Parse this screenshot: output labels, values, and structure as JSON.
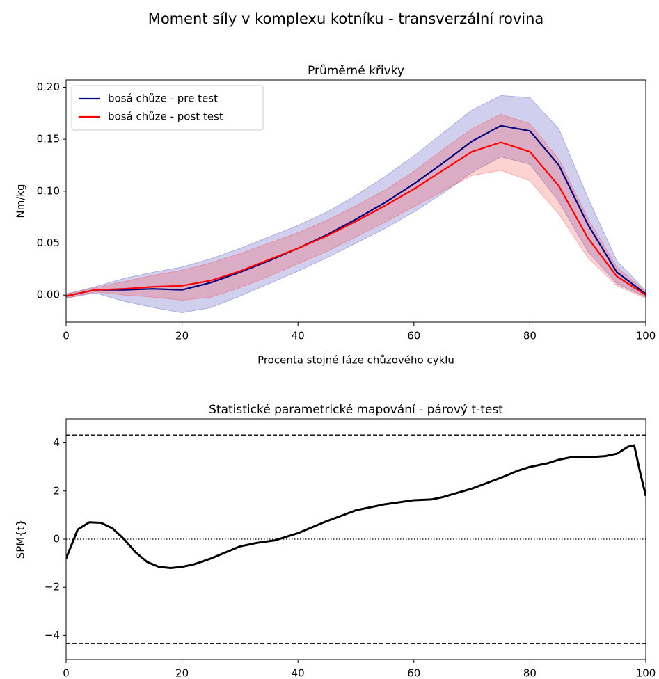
{
  "title": "Moment síly v komplexu kotníku - transverzální rovina",
  "chart_data": [
    {
      "type": "line",
      "title": "Průměrné křivky",
      "x_label": "Procenta stojné fáze chůzového cyklu",
      "y_label": "Nm/kg",
      "x": [
        0,
        5,
        10,
        15,
        20,
        25,
        30,
        35,
        40,
        45,
        50,
        55,
        60,
        65,
        70,
        75,
        80,
        85,
        90,
        95,
        100
      ],
      "series": [
        {
          "name": "bosá chůze - pre test",
          "color": "#00007f",
          "band_color": "#2b2bb0",
          "values": [
            -0.001,
            0.005,
            0.005,
            0.006,
            0.005,
            0.012,
            0.022,
            0.033,
            0.045,
            0.058,
            0.073,
            0.089,
            0.107,
            0.127,
            0.148,
            0.163,
            0.158,
            0.125,
            0.068,
            0.022,
            0.001
          ],
          "band_upper": [
            0.001,
            0.008,
            0.016,
            0.022,
            0.027,
            0.035,
            0.045,
            0.056,
            0.067,
            0.08,
            0.096,
            0.114,
            0.134,
            0.156,
            0.178,
            0.192,
            0.19,
            0.16,
            0.094,
            0.033,
            0.004
          ],
          "band_lower": [
            -0.003,
            0.002,
            -0.006,
            -0.012,
            -0.017,
            -0.012,
            -0.001,
            0.011,
            0.023,
            0.036,
            0.05,
            0.064,
            0.08,
            0.098,
            0.118,
            0.133,
            0.126,
            0.09,
            0.042,
            0.011,
            -0.002
          ]
        },
        {
          "name": "bosá chůze - post test",
          "color": "#ff0000",
          "band_color": "#ff3030",
          "values": [
            -0.001,
            0.005,
            0.006,
            0.008,
            0.009,
            0.014,
            0.023,
            0.034,
            0.045,
            0.057,
            0.071,
            0.086,
            0.102,
            0.12,
            0.138,
            0.147,
            0.138,
            0.105,
            0.055,
            0.018,
            0.0
          ],
          "band_upper": [
            0.001,
            0.007,
            0.013,
            0.019,
            0.024,
            0.031,
            0.04,
            0.05,
            0.06,
            0.072,
            0.086,
            0.101,
            0.119,
            0.14,
            0.16,
            0.174,
            0.165,
            0.131,
            0.074,
            0.027,
            0.003
          ],
          "band_lower": [
            -0.003,
            0.003,
            0.0,
            -0.002,
            -0.005,
            -0.002,
            0.007,
            0.018,
            0.03,
            0.042,
            0.056,
            0.07,
            0.085,
            0.1,
            0.115,
            0.12,
            0.11,
            0.078,
            0.036,
            0.009,
            -0.003
          ]
        }
      ],
      "xlim": [
        0,
        100
      ],
      "xticks": [
        0,
        20,
        40,
        60,
        80,
        100
      ],
      "ylim": [
        -0.026,
        0.207
      ],
      "yticks": [
        {
          "value": 0,
          "label": "0.00"
        },
        {
          "value": 0.05,
          "label": "0.05"
        },
        {
          "value": 0.1,
          "label": "0.10"
        },
        {
          "value": 0.15,
          "label": "0.15"
        },
        {
          "value": 0.2,
          "label": "0.20"
        }
      ],
      "legend": "upper left"
    },
    {
      "type": "line",
      "title": "Statistické parametrické mapování - párový t-test",
      "y_label": "SPM{t}",
      "x": [
        0,
        2,
        4,
        6,
        8,
        10,
        12,
        14,
        16,
        18,
        20,
        22,
        25,
        28,
        30,
        33,
        36,
        38,
        40,
        45,
        50,
        55,
        60,
        63,
        65,
        70,
        75,
        78,
        80,
        83,
        85,
        87,
        90,
        93,
        95,
        97,
        98,
        99,
        100
      ],
      "series": [
        {
          "color": "#000000",
          "values": [
            -0.8,
            0.4,
            0.7,
            0.68,
            0.45,
            0.0,
            -0.55,
            -0.95,
            -1.15,
            -1.2,
            -1.15,
            -1.05,
            -0.8,
            -0.5,
            -0.3,
            -0.15,
            -0.05,
            0.1,
            0.25,
            0.75,
            1.2,
            1.45,
            1.62,
            1.65,
            1.75,
            2.1,
            2.55,
            2.85,
            3.0,
            3.15,
            3.3,
            3.4,
            3.4,
            3.45,
            3.55,
            3.85,
            3.9,
            2.8,
            1.8
          ]
        }
      ],
      "hlines": [
        {
          "value": 4.33,
          "style": "dashed"
        },
        {
          "value": -4.33,
          "style": "dashed"
        },
        {
          "value": 0,
          "style": "dotted"
        }
      ],
      "xlim": [
        0,
        100
      ],
      "xticks": [
        0,
        20,
        40,
        60,
        80,
        100
      ],
      "ylim": [
        -5,
        5
      ],
      "yticks": [
        {
          "value": -4,
          "label": "−4"
        },
        {
          "value": -2,
          "label": "−2"
        },
        0,
        2,
        4
      ]
    }
  ]
}
